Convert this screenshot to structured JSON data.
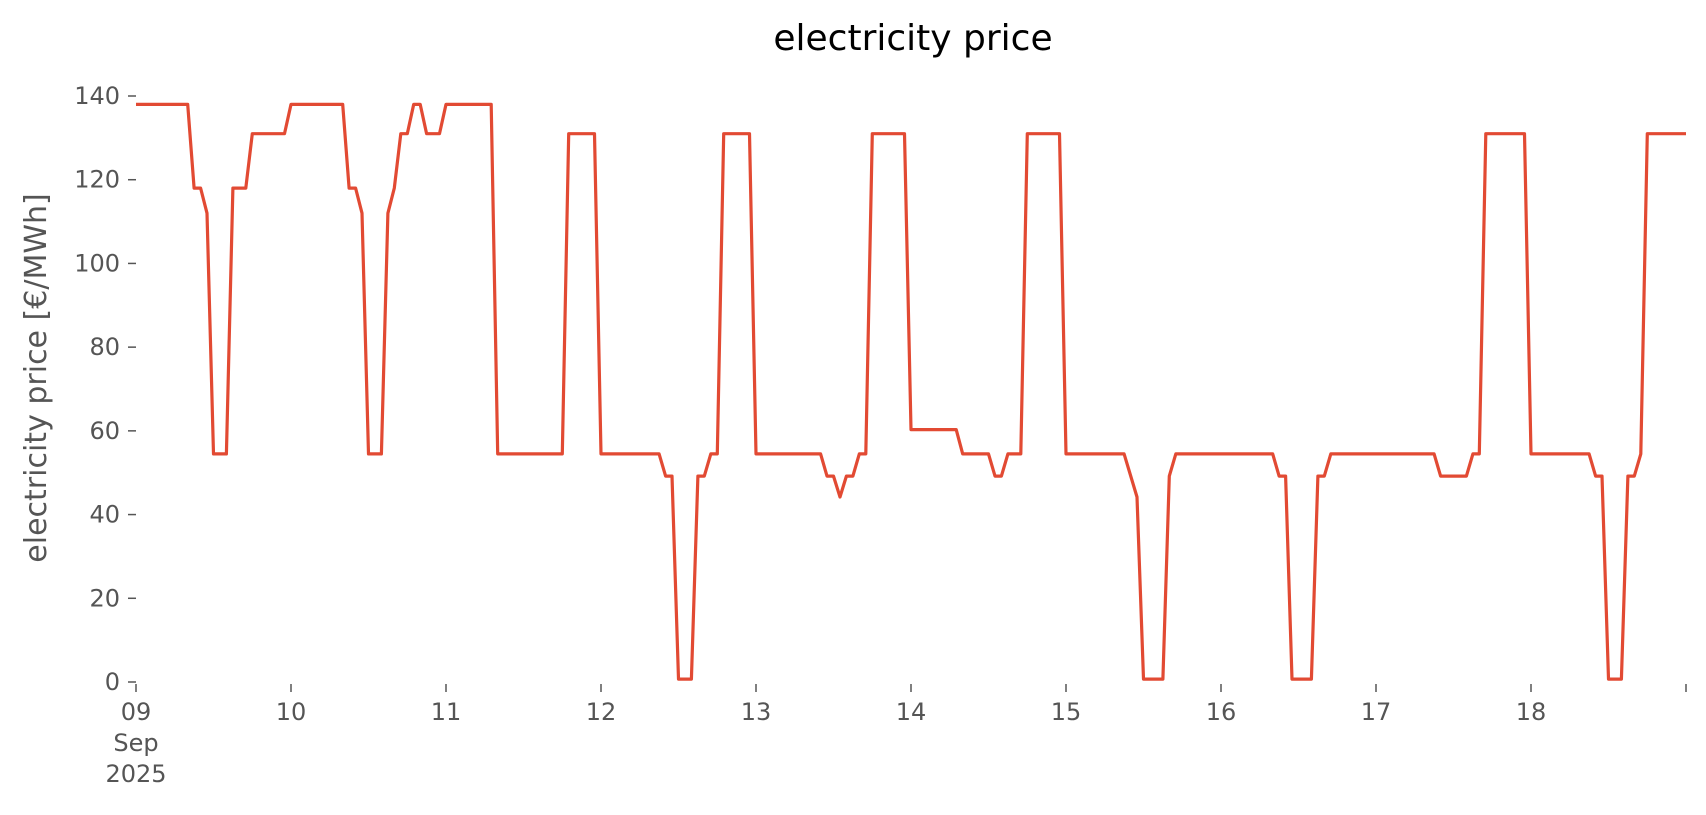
{
  "chart_data": {
    "type": "line",
    "title": "electricity price",
    "xlabel": "",
    "ylabel": "electricity price [€/MWh]",
    "ylim": [
      0,
      140
    ],
    "xlim": [
      "2025-09-09 00:00",
      "2025-09-19 00:00"
    ],
    "grid": false,
    "legend": "none",
    "line_color": "#E24A33",
    "yticks": [
      {
        "value": 0,
        "label": "0"
      },
      {
        "value": 20,
        "label": "20"
      },
      {
        "value": 40,
        "label": "40"
      },
      {
        "value": 60,
        "label": "60"
      },
      {
        "value": 80,
        "label": "80"
      },
      {
        "value": 100,
        "label": "100"
      },
      {
        "value": 120,
        "label": "120"
      },
      {
        "value": 140,
        "label": "140"
      }
    ],
    "xticks": [
      {
        "value": "2025-09-09 00:00",
        "label": "09",
        "sublabels": [
          "Sep",
          "2025"
        ]
      },
      {
        "value": "2025-09-10 00:00",
        "label": "10"
      },
      {
        "value": "2025-09-11 00:00",
        "label": "11"
      },
      {
        "value": "2025-09-12 00:00",
        "label": "12"
      },
      {
        "value": "2025-09-13 00:00",
        "label": "13"
      },
      {
        "value": "2025-09-14 00:00",
        "label": "14"
      },
      {
        "value": "2025-09-15 00:00",
        "label": "15"
      },
      {
        "value": "2025-09-16 00:00",
        "label": "16"
      },
      {
        "value": "2025-09-17 00:00",
        "label": "17"
      },
      {
        "value": "2025-09-18 00:00",
        "label": "18"
      },
      {
        "value": "2025-09-19 00:00",
        "label": ""
      }
    ],
    "series": [
      {
        "points": [
          [
            "2025-09-09 00:00",
            138
          ],
          [
            "2025-09-09 08:00",
            138
          ],
          [
            "2025-09-09 09:00",
            118
          ],
          [
            "2025-09-09 10:00",
            118
          ],
          [
            "2025-09-09 11:00",
            112
          ],
          [
            "2025-09-09 12:00",
            54.5
          ],
          [
            "2025-09-09 14:00",
            54.5
          ],
          [
            "2025-09-09 15:00",
            118
          ],
          [
            "2025-09-09 17:00",
            118
          ],
          [
            "2025-09-09 18:00",
            131
          ],
          [
            "2025-09-09 23:00",
            131
          ],
          [
            "2025-09-10 00:00",
            138
          ],
          [
            "2025-09-10 08:00",
            138
          ],
          [
            "2025-09-10 09:00",
            118
          ],
          [
            "2025-09-10 10:00",
            118
          ],
          [
            "2025-09-10 11:00",
            112
          ],
          [
            "2025-09-10 12:00",
            54.5
          ],
          [
            "2025-09-10 14:00",
            54.5
          ],
          [
            "2025-09-10 15:00",
            112
          ],
          [
            "2025-09-10 16:00",
            118
          ],
          [
            "2025-09-10 17:00",
            131
          ],
          [
            "2025-09-10 18:00",
            131
          ],
          [
            "2025-09-10 19:00",
            138
          ],
          [
            "2025-09-10 20:00",
            138
          ],
          [
            "2025-09-10 21:00",
            131
          ],
          [
            "2025-09-10 23:00",
            131
          ],
          [
            "2025-09-11 00:00",
            138
          ],
          [
            "2025-09-11 07:00",
            138
          ],
          [
            "2025-09-11 08:00",
            54.5
          ],
          [
            "2025-09-11 18:00",
            54.5
          ],
          [
            "2025-09-11 19:00",
            131
          ],
          [
            "2025-09-11 23:00",
            131
          ],
          [
            "2025-09-12 00:00",
            54.5
          ],
          [
            "2025-09-12 09:00",
            54.5
          ],
          [
            "2025-09-12 10:00",
            49.2
          ],
          [
            "2025-09-12 11:00",
            49.2
          ],
          [
            "2025-09-12 12:00",
            0.7
          ],
          [
            "2025-09-12 14:00",
            0.7
          ],
          [
            "2025-09-12 15:00",
            49.2
          ],
          [
            "2025-09-12 16:00",
            49.2
          ],
          [
            "2025-09-12 17:00",
            54.5
          ],
          [
            "2025-09-12 18:00",
            54.5
          ],
          [
            "2025-09-12 19:00",
            131
          ],
          [
            "2025-09-12 23:00",
            131
          ],
          [
            "2025-09-13 00:00",
            54.5
          ],
          [
            "2025-09-13 10:00",
            54.5
          ],
          [
            "2025-09-13 11:00",
            49.2
          ],
          [
            "2025-09-13 12:00",
            49.2
          ],
          [
            "2025-09-13 13:00",
            44.2
          ],
          [
            "2025-09-13 14:00",
            49.2
          ],
          [
            "2025-09-13 15:00",
            49.2
          ],
          [
            "2025-09-13 16:00",
            54.5
          ],
          [
            "2025-09-13 17:00",
            54.5
          ],
          [
            "2025-09-13 18:00",
            131
          ],
          [
            "2025-09-13 23:00",
            131
          ],
          [
            "2025-09-14 00:00",
            60.3
          ],
          [
            "2025-09-14 07:00",
            60.3
          ],
          [
            "2025-09-14 08:00",
            54.5
          ],
          [
            "2025-09-14 12:00",
            54.5
          ],
          [
            "2025-09-14 13:00",
            49.2
          ],
          [
            "2025-09-14 14:00",
            49.2
          ],
          [
            "2025-09-14 15:00",
            54.5
          ],
          [
            "2025-09-14 17:00",
            54.5
          ],
          [
            "2025-09-14 18:00",
            131
          ],
          [
            "2025-09-14 23:00",
            131
          ],
          [
            "2025-09-15 00:00",
            54.5
          ],
          [
            "2025-09-15 09:00",
            54.5
          ],
          [
            "2025-09-15 11:00",
            44.2
          ],
          [
            "2025-09-15 12:00",
            0.7
          ],
          [
            "2025-09-15 15:00",
            0.7
          ],
          [
            "2025-09-15 16:00",
            49.2
          ],
          [
            "2025-09-15 17:00",
            54.5
          ],
          [
            "2025-09-15 23:00",
            54.5
          ],
          [
            "2025-09-16 00:00",
            54.5
          ],
          [
            "2025-09-16 08:00",
            54.5
          ],
          [
            "2025-09-16 09:00",
            49.2
          ],
          [
            "2025-09-16 10:00",
            49.2
          ],
          [
            "2025-09-16 11:00",
            0.7
          ],
          [
            "2025-09-16 14:00",
            0.7
          ],
          [
            "2025-09-16 15:00",
            49.2
          ],
          [
            "2025-09-16 16:00",
            49.2
          ],
          [
            "2025-09-16 17:00",
            54.5
          ],
          [
            "2025-09-16 23:00",
            54.5
          ],
          [
            "2025-09-17 00:00",
            54.5
          ],
          [
            "2025-09-17 09:00",
            54.5
          ],
          [
            "2025-09-17 10:00",
            49.2
          ],
          [
            "2025-09-17 14:00",
            49.2
          ],
          [
            "2025-09-17 15:00",
            54.5
          ],
          [
            "2025-09-17 16:00",
            54.5
          ],
          [
            "2025-09-17 17:00",
            131
          ],
          [
            "2025-09-17 23:00",
            131
          ],
          [
            "2025-09-18 00:00",
            54.5
          ],
          [
            "2025-09-18 09:00",
            54.5
          ],
          [
            "2025-09-18 10:00",
            49.2
          ],
          [
            "2025-09-18 11:00",
            49.2
          ],
          [
            "2025-09-18 12:00",
            0.7
          ],
          [
            "2025-09-18 14:00",
            0.7
          ],
          [
            "2025-09-18 15:00",
            49.2
          ],
          [
            "2025-09-18 16:00",
            49.2
          ],
          [
            "2025-09-18 17:00",
            54.5
          ],
          [
            "2025-09-18 18:00",
            131
          ],
          [
            "2025-09-19 00:00",
            131
          ]
        ]
      }
    ]
  }
}
